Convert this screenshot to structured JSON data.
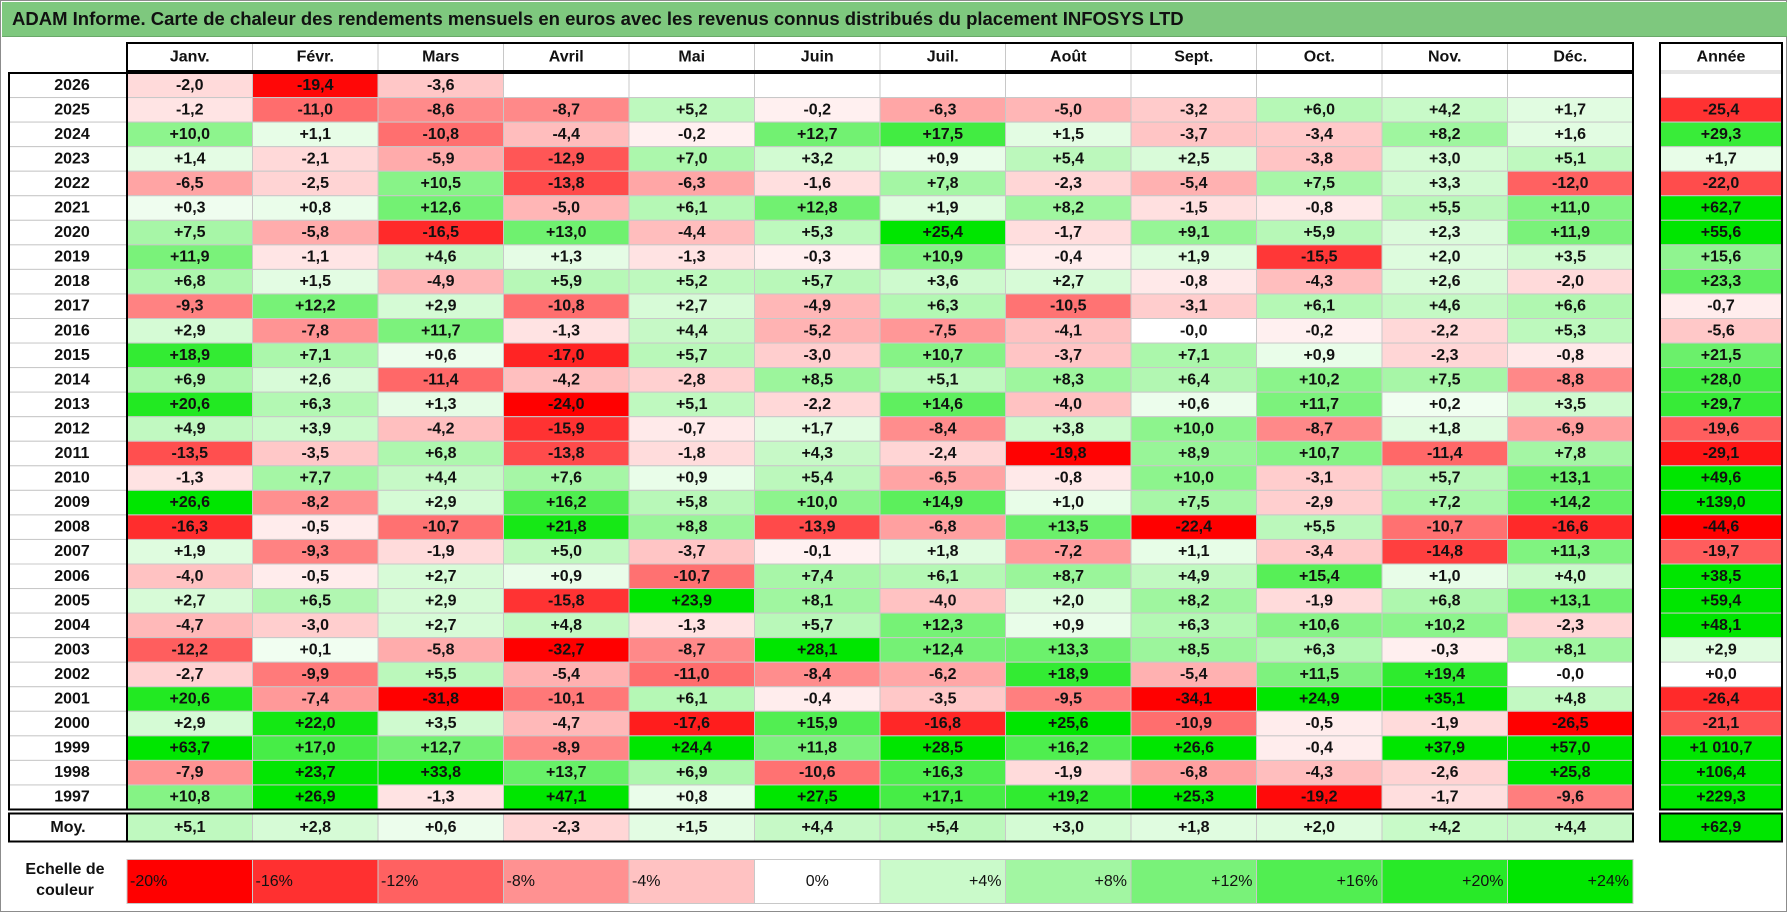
{
  "title": "ADAM Informe. Carte de chaleur des rendements mensuels en euros avec les revenus connus distribués du placement INFOSYS LTD",
  "scale_label_line1": "Echelle de",
  "scale_label_line2": "couleur",
  "colors": {
    "red": "#ff0000",
    "green": "#00e600",
    "white": "#ffffff",
    "grid": "#c8c8c8",
    "border": "#000000"
  },
  "chart_data": {
    "type": "heatmap",
    "title": "ADAM Informe. Carte de chaleur des rendements mensuels en euros avec les revenus connus distribués du placement INFOSYS LTD",
    "months": [
      "Janv.",
      "Févr.",
      "Mars",
      "Avril",
      "Mai",
      "Juin",
      "Juil.",
      "Août",
      "Sept.",
      "Oct.",
      "Nov.",
      "Déc."
    ],
    "year_header": "Année",
    "average_label": "Moy.",
    "color_range": [
      -20,
      24
    ],
    "rows": [
      {
        "year": "2026",
        "values": [
          -2.0,
          -19.4,
          -3.6,
          null,
          null,
          null,
          null,
          null,
          null,
          null,
          null,
          null
        ],
        "labels": [
          "-2,0",
          "-19,4",
          "-3,6",
          "",
          "",
          "",
          "",
          "",
          "",
          "",
          "",
          ""
        ],
        "annual": null,
        "annual_label": ""
      },
      {
        "year": "2025",
        "values": [
          -1.2,
          -11.0,
          -8.6,
          -8.7,
          5.2,
          -0.2,
          -6.3,
          -5.0,
          -3.2,
          6.0,
          4.2,
          1.7
        ],
        "labels": [
          "-1,2",
          "-11,0",
          "-8,6",
          "-8,7",
          "+5,2",
          "-0,2",
          "-6,3",
          "-5,0",
          "-3,2",
          "+6,0",
          "+4,2",
          "+1,7"
        ],
        "annual": -25.4,
        "annual_label": "-25,4"
      },
      {
        "year": "2024",
        "values": [
          10.0,
          1.1,
          -10.8,
          -4.4,
          -0.2,
          12.7,
          17.5,
          1.5,
          -3.7,
          -3.4,
          8.2,
          1.6
        ],
        "labels": [
          "+10,0",
          "+1,1",
          "-10,8",
          "-4,4",
          "-0,2",
          "+12,7",
          "+17,5",
          "+1,5",
          "-3,7",
          "-3,4",
          "+8,2",
          "+1,6"
        ],
        "annual": 29.3,
        "annual_label": "+29,3"
      },
      {
        "year": "2023",
        "values": [
          1.4,
          -2.1,
          -5.9,
          -12.9,
          7.0,
          3.2,
          0.9,
          5.4,
          2.5,
          -3.8,
          3.0,
          5.1
        ],
        "labels": [
          "+1,4",
          "-2,1",
          "-5,9",
          "-12,9",
          "+7,0",
          "+3,2",
          "+0,9",
          "+5,4",
          "+2,5",
          "-3,8",
          "+3,0",
          "+5,1"
        ],
        "annual": 1.7,
        "annual_label": "+1,7"
      },
      {
        "year": "2022",
        "values": [
          -6.5,
          -2.5,
          10.5,
          -13.8,
          -6.3,
          -1.6,
          7.8,
          -2.3,
          -5.4,
          7.5,
          3.3,
          -12.0
        ],
        "labels": [
          "-6,5",
          "-2,5",
          "+10,5",
          "-13,8",
          "-6,3",
          "-1,6",
          "+7,8",
          "-2,3",
          "-5,4",
          "+7,5",
          "+3,3",
          "-12,0"
        ],
        "annual": -22.0,
        "annual_label": "-22,0"
      },
      {
        "year": "2021",
        "values": [
          0.3,
          0.8,
          12.6,
          -5.0,
          6.1,
          12.8,
          1.9,
          8.2,
          -1.5,
          -0.8,
          5.5,
          11.0
        ],
        "labels": [
          "+0,3",
          "+0,8",
          "+12,6",
          "-5,0",
          "+6,1",
          "+12,8",
          "+1,9",
          "+8,2",
          "-1,5",
          "-0,8",
          "+5,5",
          "+11,0"
        ],
        "annual": 62.7,
        "annual_label": "+62,7"
      },
      {
        "year": "2020",
        "values": [
          7.5,
          -5.8,
          -16.5,
          13.0,
          -4.4,
          5.3,
          25.4,
          -1.7,
          9.1,
          5.9,
          2.3,
          11.9
        ],
        "labels": [
          "+7,5",
          "-5,8",
          "-16,5",
          "+13,0",
          "-4,4",
          "+5,3",
          "+25,4",
          "-1,7",
          "+9,1",
          "+5,9",
          "+2,3",
          "+11,9"
        ],
        "annual": 55.6,
        "annual_label": "+55,6"
      },
      {
        "year": "2019",
        "values": [
          11.9,
          -1.1,
          4.6,
          1.3,
          -1.3,
          -0.3,
          10.9,
          -0.4,
          1.9,
          -15.5,
          2.0,
          3.5
        ],
        "labels": [
          "+11,9",
          "-1,1",
          "+4,6",
          "+1,3",
          "-1,3",
          "-0,3",
          "+10,9",
          "-0,4",
          "+1,9",
          "-15,5",
          "+2,0",
          "+3,5"
        ],
        "annual": 15.6,
        "annual_label": "+15,6"
      },
      {
        "year": "2018",
        "values": [
          6.8,
          1.5,
          -4.9,
          5.9,
          5.2,
          5.7,
          3.6,
          2.7,
          -0.8,
          -4.3,
          2.6,
          -2.0
        ],
        "labels": [
          "+6,8",
          "+1,5",
          "-4,9",
          "+5,9",
          "+5,2",
          "+5,7",
          "+3,6",
          "+2,7",
          "-0,8",
          "-4,3",
          "+2,6",
          "-2,0"
        ],
        "annual": 23.3,
        "annual_label": "+23,3"
      },
      {
        "year": "2017",
        "values": [
          -9.3,
          12.2,
          2.9,
          -10.8,
          2.7,
          -4.9,
          6.3,
          -10.5,
          -3.1,
          6.1,
          4.6,
          6.6
        ],
        "labels": [
          "-9,3",
          "+12,2",
          "+2,9",
          "-10,8",
          "+2,7",
          "-4,9",
          "+6,3",
          "-10,5",
          "-3,1",
          "+6,1",
          "+4,6",
          "+6,6"
        ],
        "annual": -0.7,
        "annual_label": "-0,7"
      },
      {
        "year": "2016",
        "values": [
          2.9,
          -7.8,
          11.7,
          -1.3,
          4.4,
          -5.2,
          -7.5,
          -4.1,
          -0.0,
          -0.2,
          -2.2,
          5.3
        ],
        "labels": [
          "+2,9",
          "-7,8",
          "+11,7",
          "-1,3",
          "+4,4",
          "-5,2",
          "-7,5",
          "-4,1",
          "-0,0",
          "-0,2",
          "-2,2",
          "+5,3"
        ],
        "annual": -5.6,
        "annual_label": "-5,6"
      },
      {
        "year": "2015",
        "values": [
          18.9,
          7.1,
          0.6,
          -17.0,
          5.7,
          -3.0,
          10.7,
          -3.7,
          7.1,
          0.9,
          -2.3,
          -0.8
        ],
        "labels": [
          "+18,9",
          "+7,1",
          "+0,6",
          "-17,0",
          "+5,7",
          "-3,0",
          "+10,7",
          "-3,7",
          "+7,1",
          "+0,9",
          "-2,3",
          "-0,8"
        ],
        "annual": 21.5,
        "annual_label": "+21,5"
      },
      {
        "year": "2014",
        "values": [
          6.9,
          2.6,
          -11.4,
          -4.2,
          -2.8,
          8.5,
          5.1,
          8.3,
          6.4,
          10.2,
          7.5,
          -8.8
        ],
        "labels": [
          "+6,9",
          "+2,6",
          "-11,4",
          "-4,2",
          "-2,8",
          "+8,5",
          "+5,1",
          "+8,3",
          "+6,4",
          "+10,2",
          "+7,5",
          "-8,8"
        ],
        "annual": 28.0,
        "annual_label": "+28,0"
      },
      {
        "year": "2013",
        "values": [
          20.6,
          6.3,
          1.3,
          -24.0,
          5.1,
          -2.2,
          14.6,
          -4.0,
          0.6,
          11.7,
          0.2,
          3.5
        ],
        "labels": [
          "+20,6",
          "+6,3",
          "+1,3",
          "-24,0",
          "+5,1",
          "-2,2",
          "+14,6",
          "-4,0",
          "+0,6",
          "+11,7",
          "+0,2",
          "+3,5"
        ],
        "annual": 29.7,
        "annual_label": "+29,7"
      },
      {
        "year": "2012",
        "values": [
          4.9,
          3.9,
          -4.2,
          -15.9,
          -0.7,
          1.7,
          -8.4,
          3.8,
          10.0,
          -8.7,
          1.8,
          -6.9
        ],
        "labels": [
          "+4,9",
          "+3,9",
          "-4,2",
          "-15,9",
          "-0,7",
          "+1,7",
          "-8,4",
          "+3,8",
          "+10,0",
          "-8,7",
          "+1,8",
          "-6,9"
        ],
        "annual": -19.6,
        "annual_label": "-19,6"
      },
      {
        "year": "2011",
        "values": [
          -13.5,
          -3.5,
          6.8,
          -13.8,
          -1.8,
          4.3,
          -2.4,
          -19.8,
          8.9,
          10.7,
          -11.4,
          7.8
        ],
        "labels": [
          "-13,5",
          "-3,5",
          "+6,8",
          "-13,8",
          "-1,8",
          "+4,3",
          "-2,4",
          "-19,8",
          "+8,9",
          "+10,7",
          "-11,4",
          "+7,8"
        ],
        "annual": -29.1,
        "annual_label": "-29,1"
      },
      {
        "year": "2010",
        "values": [
          -1.3,
          7.7,
          4.4,
          7.6,
          0.9,
          5.4,
          -6.5,
          -0.8,
          10.0,
          -3.1,
          5.7,
          13.1
        ],
        "labels": [
          "-1,3",
          "+7,7",
          "+4,4",
          "+7,6",
          "+0,9",
          "+5,4",
          "-6,5",
          "-0,8",
          "+10,0",
          "-3,1",
          "+5,7",
          "+13,1"
        ],
        "annual": 49.6,
        "annual_label": "+49,6"
      },
      {
        "year": "2009",
        "values": [
          26.6,
          -8.2,
          2.9,
          16.2,
          5.8,
          10.0,
          14.9,
          1.0,
          7.5,
          -2.9,
          7.2,
          14.2
        ],
        "labels": [
          "+26,6",
          "-8,2",
          "+2,9",
          "+16,2",
          "+5,8",
          "+10,0",
          "+14,9",
          "+1,0",
          "+7,5",
          "-2,9",
          "+7,2",
          "+14,2"
        ],
        "annual": 139.0,
        "annual_label": "+139,0"
      },
      {
        "year": "2008",
        "values": [
          -16.3,
          -0.5,
          -10.7,
          21.8,
          8.8,
          -13.9,
          -6.8,
          13.5,
          -22.4,
          5.5,
          -10.7,
          -16.6
        ],
        "labels": [
          "-16,3",
          "-0,5",
          "-10,7",
          "+21,8",
          "+8,8",
          "-13,9",
          "-6,8",
          "+13,5",
          "-22,4",
          "+5,5",
          "-10,7",
          "-16,6"
        ],
        "annual": -44.6,
        "annual_label": "-44,6"
      },
      {
        "year": "2007",
        "values": [
          1.9,
          -9.3,
          -1.9,
          5.0,
          -3.7,
          -0.1,
          1.8,
          -7.2,
          1.1,
          -3.4,
          -14.8,
          11.3
        ],
        "labels": [
          "+1,9",
          "-9,3",
          "-1,9",
          "+5,0",
          "-3,7",
          "-0,1",
          "+1,8",
          "-7,2",
          "+1,1",
          "-3,4",
          "-14,8",
          "+11,3"
        ],
        "annual": -19.7,
        "annual_label": "-19,7"
      },
      {
        "year": "2006",
        "values": [
          -4.0,
          -0.5,
          2.7,
          0.9,
          -10.7,
          7.4,
          6.1,
          8.7,
          4.9,
          15.4,
          1.0,
          4.0
        ],
        "labels": [
          "-4,0",
          "-0,5",
          "+2,7",
          "+0,9",
          "-10,7",
          "+7,4",
          "+6,1",
          "+8,7",
          "+4,9",
          "+15,4",
          "+1,0",
          "+4,0"
        ],
        "annual": 38.5,
        "annual_label": "+38,5"
      },
      {
        "year": "2005",
        "values": [
          2.7,
          6.5,
          2.9,
          -15.8,
          23.9,
          8.1,
          -4.0,
          2.0,
          8.2,
          -1.9,
          6.8,
          13.1
        ],
        "labels": [
          "+2,7",
          "+6,5",
          "+2,9",
          "-15,8",
          "+23,9",
          "+8,1",
          "-4,0",
          "+2,0",
          "+8,2",
          "-1,9",
          "+6,8",
          "+13,1"
        ],
        "annual": 59.4,
        "annual_label": "+59,4"
      },
      {
        "year": "2004",
        "values": [
          -4.7,
          -3.0,
          2.7,
          4.8,
          -1.3,
          5.7,
          12.3,
          0.9,
          6.3,
          10.6,
          10.2,
          -2.3
        ],
        "labels": [
          "-4,7",
          "-3,0",
          "+2,7",
          "+4,8",
          "-1,3",
          "+5,7",
          "+12,3",
          "+0,9",
          "+6,3",
          "+10,6",
          "+10,2",
          "-2,3"
        ],
        "annual": 48.1,
        "annual_label": "+48,1"
      },
      {
        "year": "2003",
        "values": [
          -12.2,
          0.1,
          -5.8,
          -32.7,
          -8.7,
          28.1,
          12.4,
          13.3,
          8.5,
          6.3,
          -0.3,
          8.1
        ],
        "labels": [
          "-12,2",
          "+0,1",
          "-5,8",
          "-32,7",
          "-8,7",
          "+28,1",
          "+12,4",
          "+13,3",
          "+8,5",
          "+6,3",
          "-0,3",
          "+8,1"
        ],
        "annual": 2.9,
        "annual_label": "+2,9"
      },
      {
        "year": "2002",
        "values": [
          -2.7,
          -9.9,
          5.5,
          -5.4,
          -11.0,
          -8.4,
          -6.2,
          18.9,
          -5.4,
          11.5,
          19.4,
          -0.0
        ],
        "labels": [
          "-2,7",
          "-9,9",
          "+5,5",
          "-5,4",
          "-11,0",
          "-8,4",
          "-6,2",
          "+18,9",
          "-5,4",
          "+11,5",
          "+19,4",
          "-0,0"
        ],
        "annual": 0.0,
        "annual_label": "+0,0"
      },
      {
        "year": "2001",
        "values": [
          20.6,
          -7.4,
          -31.8,
          -10.1,
          6.1,
          -0.4,
          -3.5,
          -9.5,
          -34.1,
          24.9,
          35.1,
          4.8
        ],
        "labels": [
          "+20,6",
          "-7,4",
          "-31,8",
          "-10,1",
          "+6,1",
          "-0,4",
          "-3,5",
          "-9,5",
          "-34,1",
          "+24,9",
          "+35,1",
          "+4,8"
        ],
        "annual": -26.4,
        "annual_label": "-26,4"
      },
      {
        "year": "2000",
        "values": [
          2.9,
          22.0,
          3.5,
          -4.7,
          -17.6,
          15.9,
          -16.8,
          25.6,
          -10.9,
          -0.5,
          -1.9,
          -26.5
        ],
        "labels": [
          "+2,9",
          "+22,0",
          "+3,5",
          "-4,7",
          "-17,6",
          "+15,9",
          "-16,8",
          "+25,6",
          "-10,9",
          "-0,5",
          "-1,9",
          "-26,5"
        ],
        "annual": -21.1,
        "annual_label": "-21,1"
      },
      {
        "year": "1999",
        "values": [
          63.7,
          17.0,
          12.7,
          -8.9,
          24.4,
          11.8,
          28.5,
          16.2,
          26.6,
          -0.4,
          37.9,
          57.0
        ],
        "labels": [
          "+63,7",
          "+17,0",
          "+12,7",
          "-8,9",
          "+24,4",
          "+11,8",
          "+28,5",
          "+16,2",
          "+26,6",
          "-0,4",
          "+37,9",
          "+57,0"
        ],
        "annual": 1010.7,
        "annual_label": "+1 010,7"
      },
      {
        "year": "1998",
        "values": [
          -7.9,
          23.7,
          33.8,
          13.7,
          6.9,
          -10.6,
          16.3,
          -1.9,
          -6.8,
          -4.3,
          -2.6,
          25.8
        ],
        "labels": [
          "-7,9",
          "+23,7",
          "+33,8",
          "+13,7",
          "+6,9",
          "-10,6",
          "+16,3",
          "-1,9",
          "-6,8",
          "-4,3",
          "-2,6",
          "+25,8"
        ],
        "annual": 106.4,
        "annual_label": "+106,4"
      },
      {
        "year": "1997",
        "values": [
          10.8,
          26.9,
          -1.3,
          47.1,
          0.8,
          27.5,
          17.1,
          19.2,
          25.3,
          -19.2,
          -1.7,
          -9.6
        ],
        "labels": [
          "+10,8",
          "+26,9",
          "-1,3",
          "+47,1",
          "+0,8",
          "+27,5",
          "+17,1",
          "+19,2",
          "+25,3",
          "-19,2",
          "-1,7",
          "-9,6"
        ],
        "annual": 229.3,
        "annual_label": "+229,3"
      }
    ],
    "average": {
      "values": [
        5.1,
        2.8,
        0.6,
        -2.3,
        1.5,
        4.4,
        5.4,
        3.0,
        1.8,
        2.0,
        4.2,
        4.4
      ],
      "labels": [
        "+5,1",
        "+2,8",
        "+0,6",
        "-2,3",
        "+1,5",
        "+4,4",
        "+5,4",
        "+3,0",
        "+1,8",
        "+2,0",
        "+4,2",
        "+4,4"
      ],
      "annual": 62.9,
      "annual_label": "+62,9"
    },
    "legend": {
      "values": [
        -20,
        -16,
        -12,
        -8,
        -4,
        0,
        4,
        8,
        12,
        16,
        20,
        24
      ],
      "labels": [
        "-20%",
        "-16%",
        "-12%",
        "-8%",
        "-4%",
        "0%",
        "+4%",
        "+8%",
        "+12%",
        "+16%",
        "+20%",
        "+24%"
      ]
    }
  }
}
